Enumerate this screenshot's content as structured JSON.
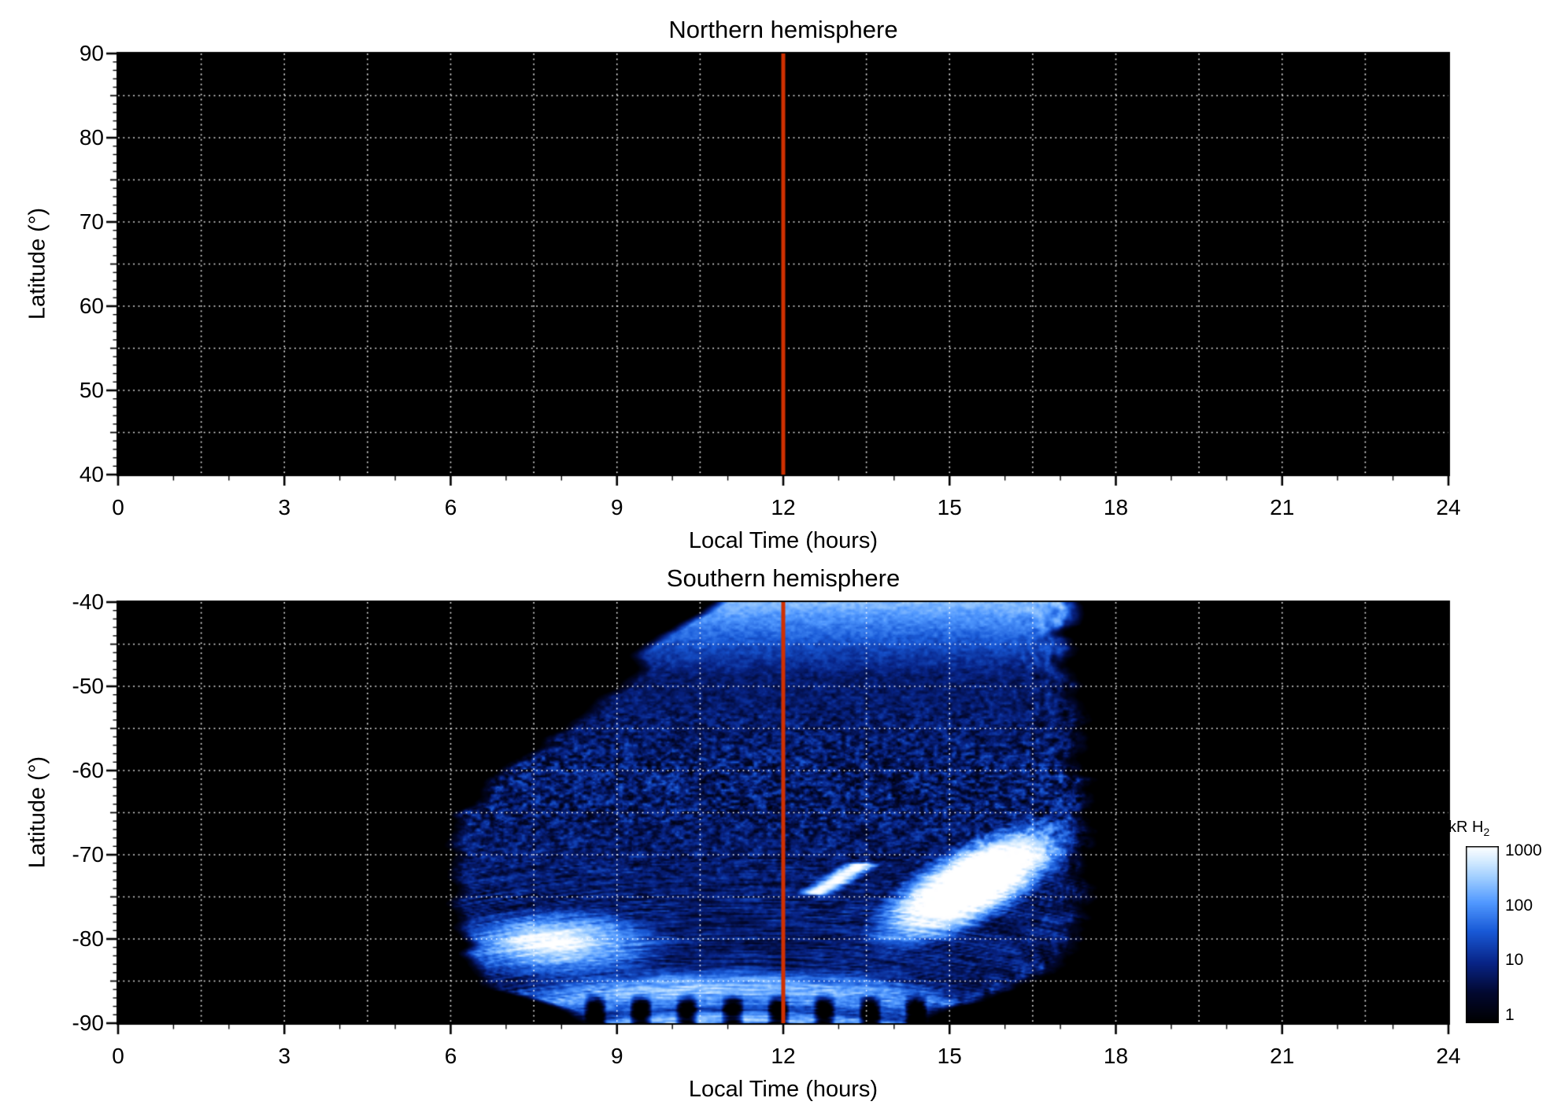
{
  "figure": {
    "background": "#ffffff",
    "text_color": "#000000",
    "grid_color": "#ffffff",
    "tick_color": "#000000"
  },
  "chart_data": [
    {
      "type": "heatmap",
      "panel": "top",
      "title": "Northern hemisphere",
      "xlabel": "Local Time (hours)",
      "ylabel": "Latitude (°)",
      "xlim": [
        0,
        24
      ],
      "ylim": [
        40,
        90
      ],
      "xticks": [
        0,
        3,
        6,
        9,
        12,
        15,
        18,
        21,
        24
      ],
      "yticks": [
        90,
        80,
        70,
        60,
        50,
        40
      ],
      "x_minor_step": 1,
      "y_minor_step": 1,
      "y_medium_step": 5,
      "grid": {
        "x_step": 1.5,
        "y_step": 5,
        "style": "dotted"
      },
      "noon_line": {
        "x": 12,
        "color": "#d03000"
      },
      "background": "#000000",
      "data_note": "No H2 emission visible in this hemisphere; entire panel at or below the 1 kR colour floor (black)."
    },
    {
      "type": "heatmap",
      "panel": "bottom",
      "title": "Southern hemisphere",
      "xlabel": "Local Time (hours)",
      "ylabel": "Latitude (°)",
      "xlim": [
        0,
        24
      ],
      "ylim": [
        -90,
        -40
      ],
      "xticks": [
        0,
        3,
        6,
        9,
        12,
        15,
        18,
        21,
        24
      ],
      "yticks": [
        -40,
        -50,
        -60,
        -70,
        -80,
        -90
      ],
      "x_minor_step": 1,
      "y_minor_step": 1,
      "y_medium_step": 5,
      "grid": {
        "x_step": 1.5,
        "y_step": 5,
        "style": "dotted"
      },
      "noon_line": {
        "x": 12,
        "color": "#d03000"
      },
      "background": "#000000",
      "colorbar": {
        "label": "kR H",
        "label_sub": "2",
        "scale": "log",
        "range_kr": [
          1,
          1000
        ],
        "ticks": [
          1000,
          100,
          10,
          1
        ]
      },
      "emission": {
        "units": "kR H2",
        "coverage_note": "Emission coverage only between about LT 6 and 17.6; panel black elsewhere.",
        "coverage_boundary": {
          "left_lat_lt": [
            [
              -40,
              10.6
            ],
            [
              -45,
              9.6
            ],
            [
              -50,
              8.8
            ],
            [
              -55,
              8.0
            ],
            [
              -60,
              7.0
            ],
            [
              -65,
              6.15
            ],
            [
              -70,
              6.0
            ],
            [
              -80,
              6.1
            ],
            [
              -85,
              6.5
            ],
            [
              -88,
              7.6
            ],
            [
              -90,
              8.3
            ]
          ],
          "right_lat_lt": [
            [
              -40,
              17.25
            ],
            [
              -60,
              17.5
            ],
            [
              -75,
              17.55
            ],
            [
              -80,
              17.4
            ],
            [
              -84,
              17.0
            ],
            [
              -86,
              16.3
            ],
            [
              -88,
              15.3
            ],
            [
              -90,
              14.6
            ]
          ]
        },
        "features": [
          {
            "name": "dayside-low-latitude-band",
            "lat_range": [
              -40,
              -55
            ],
            "lt_range": [
              10.5,
              17.3
            ],
            "peak_kr": 220,
            "description": "Light-blue emission band along the equatorward edge of coverage, brightest near -40 and fading by about -55."
          },
          {
            "name": "mottled-mid-latitudes",
            "lat_range": [
              -55,
              -68
            ],
            "lt_range": [
              6.5,
              17.5
            ],
            "typical_kr": 5,
            "description": "Dark speckled weak-emission region, roughly 1-15 kR."
          },
          {
            "name": "main-auroral-region",
            "lat_range": [
              -66,
              -80
            ],
            "lt_range": [
              13.5,
              17.4
            ],
            "peak_kr": 1000,
            "description": "Saturated white auroral emission band tilted from (LT 13.8, -78) toward (LT 17, -68)."
          },
          {
            "name": "dawn-polar-brightening",
            "lat_range": [
              -74,
              -86
            ],
            "lt_range": [
              6.2,
              10
            ],
            "peak_kr": 800,
            "description": "Bright white and light-blue horizontally streaked emission near the dawn-side pole."
          },
          {
            "name": "polar-arcs",
            "lat_range": [
              -82,
              -89
            ],
            "lt_range": [
              7,
              15
            ],
            "peak_kr": 200,
            "description": "Nested light-blue fibrous arcs arching over the pole."
          },
          {
            "name": "noon-bright-streak",
            "lat_range": [
              -74.5,
              -71.2
            ],
            "lt_range": [
              12.6,
              13.4
            ],
            "peak_kr": 1000,
            "description": "Short bright diagonal streak just after noon."
          },
          {
            "name": "polar-striped-fan",
            "lat_range": [
              -87,
              -90
            ],
            "lt_range": [
              8.5,
              14.7
            ],
            "description": "Fan of alternating bright/dark radial wedges along the bottom (pole) edge."
          }
        ]
      }
    }
  ]
}
